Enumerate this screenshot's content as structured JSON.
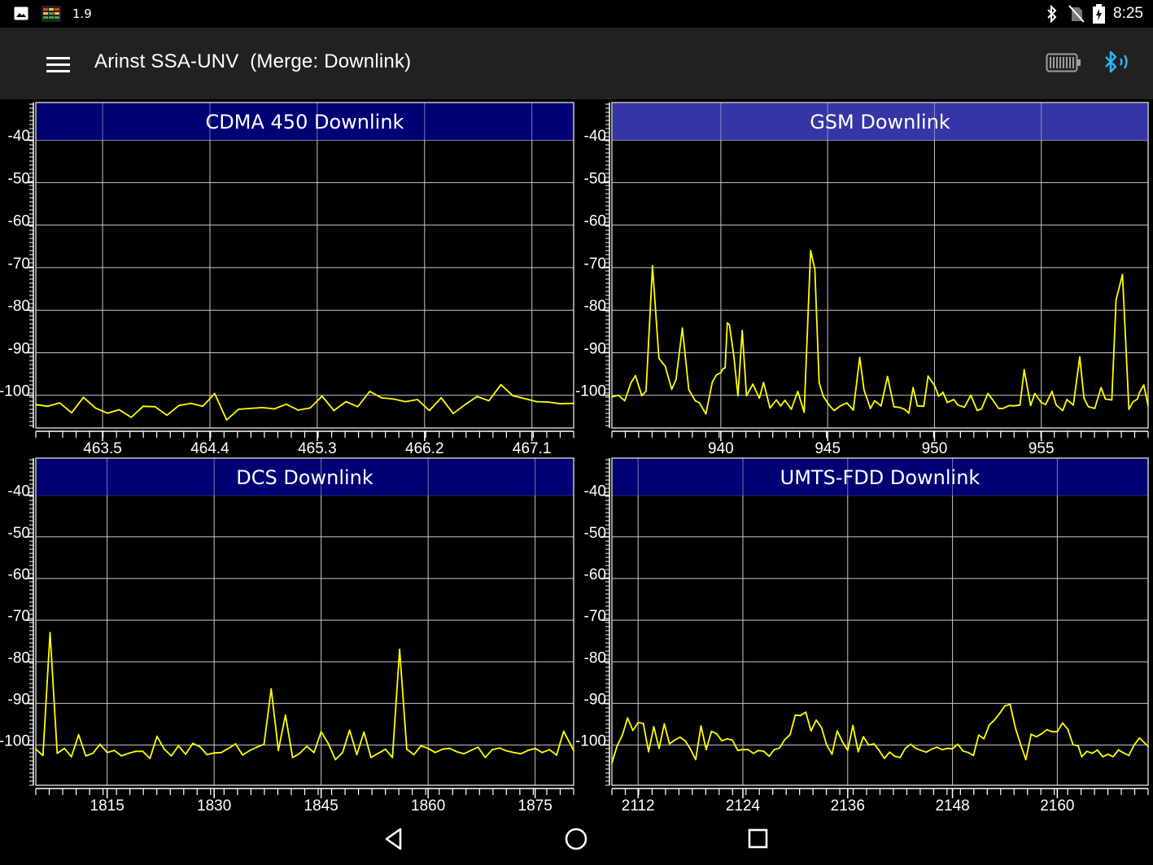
{
  "status_bar": {
    "notification_value": "1.9",
    "time": "8:25",
    "icons": [
      "image-icon",
      "equalizer-app-icon",
      "bluetooth-icon",
      "no-sim-icon",
      "battery-charging-icon"
    ]
  },
  "app_bar": {
    "title": "Arinst SSA-UNV  (Merge: Downlink)",
    "icons": [
      "menu-icon",
      "device-battery-icon",
      "bluetooth-signal-icon"
    ],
    "accent_color": "#29b6f6"
  },
  "colors": {
    "trace": "#ffff00",
    "header_dark": "#00007e",
    "header_light": "#3a3ab4",
    "grid": "#c8c8c8",
    "background": "#000000"
  },
  "nav_bar": {
    "icons": [
      "back-icon",
      "home-icon",
      "recents-icon"
    ]
  },
  "chart_data": [
    {
      "type": "line",
      "title": "CDMA 450 Downlink",
      "header_style": "dark",
      "ylim": [
        -110,
        -35
      ],
      "y_ticks": [
        -40,
        -50,
        -60,
        -70,
        -80,
        -90,
        -100
      ],
      "y_tick_labels": [
        "-40",
        "-50",
        "-60",
        "-70",
        "-80",
        "-90",
        "-100"
      ],
      "xlim": [
        462.94,
        467.45
      ],
      "x_ticks": [
        463.5,
        464.4,
        465.3,
        466.2,
        467.1
      ],
      "x_tick_labels": [
        "463.5",
        "464.4",
        "465.3",
        "466.2",
        "467.1"
      ],
      "grid": true,
      "series": [
        {
          "x": [
            462.94,
            463.04,
            463.14,
            463.24,
            463.34,
            463.44,
            463.54,
            463.64,
            463.74,
            463.84,
            463.94,
            464.04,
            464.14,
            464.24,
            464.34,
            464.44,
            464.54,
            464.64,
            464.74,
            464.84,
            464.94,
            465.04,
            465.14,
            465.24,
            465.34,
            465.44,
            465.54,
            465.64,
            465.74,
            465.84,
            465.94,
            466.04,
            466.14,
            466.24,
            466.34,
            466.44,
            466.54,
            466.64,
            466.74,
            466.84,
            466.94,
            467.04,
            467.14,
            467.24,
            467.34,
            467.45
          ],
          "y": [
            -102.2,
            -102.6,
            -101.8,
            -104.1,
            -100.5,
            -103.0,
            -104.2,
            -103.4,
            -105.2,
            -102.6,
            -102.7,
            -104.7,
            -102.4,
            -101.9,
            -102.6,
            -99.6,
            -105.8,
            -103.3,
            -103.1,
            -102.9,
            -103.2,
            -102.1,
            -103.5,
            -103.0,
            -100.2,
            -103.6,
            -101.5,
            -102.7,
            -99.1,
            -100.6,
            -100.9,
            -101.5,
            -101.0,
            -103.6,
            -100.6,
            -104.3,
            -102.2,
            -100.3,
            -101.3,
            -97.5,
            -100.1,
            -100.8,
            -101.5,
            -101.6,
            -102.0,
            -101.9
          ]
        }
      ]
    },
    {
      "type": "line",
      "title": "GSM Downlink",
      "header_style": "light",
      "ylim": [
        -110,
        -35
      ],
      "y_ticks": [
        -40,
        -50,
        -60,
        -70,
        -80,
        -90,
        -100
      ],
      "y_tick_labels": [
        "-40",
        "-50",
        "-60",
        "-70",
        "-80",
        "-90",
        "-100"
      ],
      "xlim": [
        934.9,
        960.0
      ],
      "x_ticks": [
        940,
        945,
        950,
        955
      ],
      "x_tick_labels": [
        "940",
        "945",
        "950",
        "955"
      ],
      "grid": true,
      "series": [
        {
          "x": [
            934.9,
            935.2,
            935.5,
            935.8,
            936.0,
            936.3,
            936.5,
            936.8,
            937.1,
            937.4,
            937.7,
            937.9,
            938.2,
            938.5,
            938.8,
            939.0,
            939.3,
            939.6,
            939.8,
            940.0,
            940.1,
            940.2,
            940.3,
            940.4,
            940.6,
            940.8,
            941.0,
            941.2,
            941.5,
            941.8,
            942.0,
            942.3,
            942.6,
            942.8,
            943.0,
            943.3,
            943.6,
            943.9,
            944.2,
            944.4,
            944.6,
            944.8,
            945.1,
            945.3,
            945.6,
            945.9,
            946.2,
            946.5,
            946.7,
            947.0,
            947.2,
            947.5,
            947.8,
            948.1,
            948.4,
            948.6,
            948.8,
            949.0,
            949.2,
            949.5,
            949.7,
            950.0,
            950.2,
            950.4,
            950.6,
            950.9,
            951.1,
            951.4,
            951.7,
            952.0,
            952.2,
            952.5,
            952.7,
            953.0,
            953.2,
            953.5,
            953.7,
            954.0,
            954.2,
            954.5,
            954.7,
            955.0,
            955.2,
            955.5,
            955.7,
            956.0,
            956.2,
            956.5,
            956.8,
            957.0,
            957.2,
            957.5,
            957.8,
            958.0,
            958.3,
            958.5,
            958.8,
            959.1,
            959.3,
            959.5,
            959.6,
            959.8,
            960.0
          ],
          "y": [
            -100.4,
            -100.0,
            -101.3,
            -97.0,
            -95.4,
            -100.1,
            -99.0,
            -69.6,
            -91.3,
            -93.2,
            -98.6,
            -96.3,
            -84.2,
            -98.7,
            -101.3,
            -101.8,
            -104.4,
            -96.9,
            -95.2,
            -94.7,
            -93.8,
            -93.5,
            -83.0,
            -83.4,
            -90.5,
            -100.1,
            -84.8,
            -100.1,
            -97.4,
            -100.7,
            -97.0,
            -103.0,
            -101.1,
            -102.5,
            -101.2,
            -103.3,
            -99.1,
            -104.0,
            -66.0,
            -70.3,
            -97.0,
            -100.3,
            -102.5,
            -103.6,
            -102.5,
            -101.8,
            -103.5,
            -91.1,
            -98.7,
            -103.1,
            -101.3,
            -102.5,
            -95.6,
            -102.7,
            -102.9,
            -103.3,
            -104.2,
            -98.2,
            -102.5,
            -102.6,
            -95.5,
            -97.7,
            -100.2,
            -99.3,
            -101.7,
            -101.0,
            -102.3,
            -102.8,
            -100.0,
            -103.6,
            -103.2,
            -99.6,
            -100.9,
            -103.1,
            -103.1,
            -102.4,
            -102.5,
            -102.3,
            -94.0,
            -102.4,
            -99.6,
            -101.7,
            -102.2,
            -99.1,
            -102.3,
            -103.6,
            -101.0,
            -102.3,
            -91.0,
            -100.7,
            -102.7,
            -103.1,
            -98.2,
            -100.9,
            -101.1,
            -77.6,
            -71.6,
            -103.3,
            -101.5,
            -100.9,
            -99.3,
            -97.6,
            -102.4
          ]
        }
      ]
    },
    {
      "type": "line",
      "title": "DCS Downlink",
      "header_style": "dark",
      "ylim": [
        -112,
        -35
      ],
      "y_ticks": [
        -40,
        -50,
        -60,
        -70,
        -80,
        -90,
        -100
      ],
      "y_tick_labels": [
        "-40",
        "-50",
        "-60",
        "-70",
        "-80",
        "-90",
        "-100"
      ],
      "xlim": [
        1805.0,
        1880.4
      ],
      "x_ticks": [
        1815,
        1830,
        1845,
        1860,
        1875
      ],
      "x_tick_labels": [
        "1815",
        "1830",
        "1845",
        "1860",
        "1875"
      ],
      "grid": true,
      "series": [
        {
          "x": [
            1805.0,
            1806.0,
            1807.0,
            1808.0,
            1809.0,
            1810.0,
            1811.0,
            1812.0,
            1813.0,
            1814.0,
            1815.0,
            1816.0,
            1817.0,
            1818.0,
            1819.0,
            1820.0,
            1821.0,
            1822.0,
            1823.0,
            1824.0,
            1825.0,
            1826.0,
            1827.0,
            1828.0,
            1829.0,
            1830.0,
            1831.0,
            1832.0,
            1833.0,
            1834.0,
            1835.0,
            1836.0,
            1837.0,
            1838.0,
            1839.0,
            1840.0,
            1841.0,
            1842.0,
            1843.0,
            1844.0,
            1845.0,
            1846.0,
            1847.0,
            1848.0,
            1849.0,
            1850.0,
            1851.0,
            1852.0,
            1853.0,
            1854.0,
            1855.0,
            1856.0,
            1857.0,
            1858.0,
            1859.0,
            1860.0,
            1861.0,
            1862.0,
            1863.0,
            1864.0,
            1865.0,
            1866.0,
            1867.0,
            1868.0,
            1869.0,
            1870.0,
            1871.0,
            1872.0,
            1873.0,
            1874.0,
            1875.0,
            1876.0,
            1877.0,
            1878.0,
            1879.0,
            1880.4
          ],
          "y": [
            -101.0,
            -102.5,
            -73.0,
            -102.0,
            -100.8,
            -102.8,
            -97.5,
            -102.6,
            -102.0,
            -99.8,
            -101.8,
            -101.3,
            -102.6,
            -102.0,
            -101.5,
            -101.5,
            -103.2,
            -97.9,
            -101.0,
            -102.6,
            -100.2,
            -102.2,
            -99.6,
            -100.4,
            -102.3,
            -101.9,
            -101.8,
            -100.8,
            -99.7,
            -102.4,
            -101.3,
            -100.5,
            -99.8,
            -86.5,
            -101.3,
            -92.8,
            -103.0,
            -102.0,
            -100.3,
            -101.8,
            -96.8,
            -99.6,
            -103.5,
            -101.8,
            -96.4,
            -102.3,
            -96.9,
            -103.0,
            -102.0,
            -101.0,
            -103.0,
            -77.0,
            -101.0,
            -102.3,
            -100.2,
            -100.8,
            -101.8,
            -101.0,
            -100.8,
            -101.6,
            -102.1,
            -101.3,
            -100.5,
            -103.0,
            -101.1,
            -100.7,
            -101.4,
            -101.8,
            -102.1,
            -101.3,
            -100.8,
            -101.8,
            -101.1,
            -102.4,
            -96.7,
            -101.3
          ]
        }
      ]
    },
    {
      "type": "line",
      "title": "UMTS-FDD Downlink",
      "header_style": "dark",
      "ylim": [
        -112,
        -35
      ],
      "y_ticks": [
        -40,
        -50,
        -60,
        -70,
        -80,
        -90,
        -100
      ],
      "y_tick_labels": [
        "-40",
        "-50",
        "-60",
        "-70",
        "-80",
        "-90",
        "-100"
      ],
      "xlim": [
        2109.0,
        2170.4
      ],
      "x_ticks": [
        2112,
        2124,
        2136,
        2148,
        2160
      ],
      "x_tick_labels": [
        "2112",
        "2124",
        "2136",
        "2148",
        "2160"
      ],
      "grid": true,
      "series": [
        {
          "x": [
            2109.0,
            2109.6,
            2110.2,
            2110.8,
            2111.4,
            2112.0,
            2112.6,
            2113.2,
            2113.8,
            2114.4,
            2115.0,
            2115.6,
            2116.2,
            2116.8,
            2117.4,
            2118.0,
            2118.6,
            2119.2,
            2119.8,
            2120.4,
            2121.0,
            2121.6,
            2122.2,
            2122.8,
            2123.4,
            2124.0,
            2124.6,
            2125.2,
            2125.8,
            2126.4,
            2127.0,
            2127.6,
            2128.2,
            2128.8,
            2129.4,
            2130.0,
            2130.6,
            2131.2,
            2131.8,
            2132.4,
            2133.0,
            2133.6,
            2134.2,
            2134.8,
            2135.4,
            2136.0,
            2136.6,
            2137.2,
            2137.8,
            2138.4,
            2139.0,
            2139.6,
            2140.2,
            2140.8,
            2141.4,
            2142.0,
            2142.6,
            2143.2,
            2143.8,
            2144.4,
            2145.0,
            2145.6,
            2146.2,
            2146.8,
            2147.4,
            2148.0,
            2148.6,
            2149.2,
            2149.8,
            2150.4,
            2151.0,
            2151.6,
            2152.2,
            2152.8,
            2153.4,
            2154.0,
            2154.6,
            2155.2,
            2155.8,
            2156.4,
            2157.0,
            2157.6,
            2158.2,
            2158.8,
            2159.4,
            2160.0,
            2160.6,
            2161.2,
            2161.8,
            2162.4,
            2162.8,
            2163.4,
            2164.0,
            2164.6,
            2165.2,
            2165.8,
            2166.4,
            2167.0,
            2167.6,
            2168.2,
            2168.8,
            2169.4,
            2170.4
          ],
          "y": [
            -104.3,
            -100.2,
            -97.6,
            -93.5,
            -96.5,
            -94.6,
            -94.8,
            -101.6,
            -95.6,
            -100.8,
            -94.9,
            -99.7,
            -98.8,
            -98.1,
            -99.0,
            -101.0,
            -103.5,
            -95.4,
            -101.1,
            -96.7,
            -97.3,
            -99.0,
            -98.5,
            -98.8,
            -101.3,
            -101.1,
            -101.1,
            -102.0,
            -101.3,
            -101.5,
            -102.7,
            -101.1,
            -100.7,
            -98.7,
            -97.5,
            -92.8,
            -92.9,
            -92.1,
            -96.6,
            -94.0,
            -95.8,
            -100.0,
            -102.2,
            -96.6,
            -99.2,
            -101.3,
            -95.3,
            -101.6,
            -98.0,
            -100.0,
            -99.7,
            -101.3,
            -103.2,
            -101.7,
            -102.7,
            -103.0,
            -100.8,
            -99.8,
            -100.8,
            -101.3,
            -101.7,
            -101.0,
            -100.5,
            -101.1,
            -100.8,
            -100.9,
            -99.8,
            -101.4,
            -101.8,
            -102.5,
            -97.6,
            -98.5,
            -95.2,
            -94.0,
            -92.4,
            -90.6,
            -90.2,
            -95.9,
            -99.8,
            -103.5,
            -97.4,
            -98.0,
            -97.3,
            -96.3,
            -96.8,
            -96.8,
            -94.7,
            -96.2,
            -99.9,
            -100.2,
            -102.8,
            -101.5,
            -102.0,
            -101.2,
            -102.8,
            -102.2,
            -102.8,
            -101.2,
            -101.9,
            -102.5,
            -100.0,
            -98.3,
            -100.3
          ]
        }
      ]
    }
  ]
}
